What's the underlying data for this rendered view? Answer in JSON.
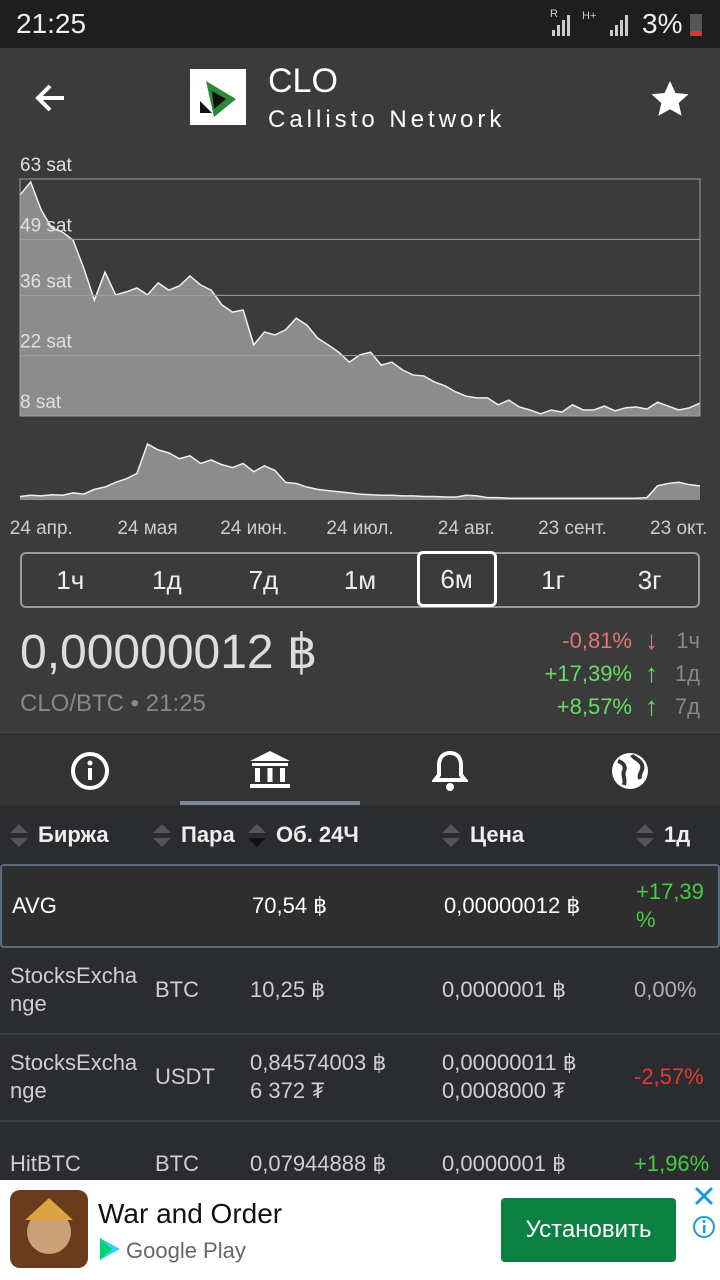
{
  "status_bar": {
    "time": "21:25",
    "network_1": "R",
    "network_2": "H+",
    "battery": "3%"
  },
  "header": {
    "symbol": "CLO",
    "name": "Callisto Network"
  },
  "chart_data": [
    {
      "type": "area",
      "color": "#8c8c8c",
      "line_color": "#f0f0f0",
      "grid": true,
      "ylim": [
        8,
        63
      ],
      "yticks": [
        {
          "value": 63,
          "label": "63 sat"
        },
        {
          "value": 49,
          "label": "49 sat"
        },
        {
          "value": 36,
          "label": "36 sat"
        },
        {
          "value": 22,
          "label": "22 sat"
        },
        {
          "value": 8,
          "label": "8 sat"
        }
      ],
      "categories": [
        null,
        null,
        "24 апр.",
        null,
        null,
        null,
        null,
        null,
        null,
        null,
        null,
        null,
        "24 мая",
        null,
        null,
        null,
        null,
        null,
        null,
        null,
        null,
        null,
        "24 июн.",
        null,
        null,
        null,
        null,
        null,
        null,
        null,
        null,
        null,
        "24 июл.",
        null,
        null,
        null,
        null,
        null,
        null,
        null,
        null,
        null,
        "24 авг.",
        null,
        null,
        null,
        null,
        null,
        null,
        null,
        null,
        null,
        "23 сент.",
        null,
        null,
        null,
        null,
        null,
        null,
        null,
        null,
        null,
        "23 окт.",
        null,
        null
      ],
      "values": [
        59.3,
        62.3,
        55.8,
        51.6,
        50.7,
        48.8,
        42.3,
        34.9,
        41.4,
        36.1,
        36.8,
        37.7,
        36.1,
        38.9,
        37.2,
        38.2,
        40.5,
        38.4,
        37.2,
        33.8,
        32.1,
        32.6,
        24.5,
        27.5,
        26.8,
        28.0,
        30.7,
        29.1,
        26.1,
        24.5,
        22.8,
        20.5,
        22.2,
        22.8,
        19.8,
        20.5,
        18.7,
        17.5,
        17.3,
        15.9,
        15.0,
        13.6,
        12.6,
        12.2,
        12.2,
        10.6,
        11.7,
        10.1,
        9.4,
        8.5,
        9.4,
        8.9,
        10.6,
        9.4,
        9.4,
        10.3,
        9.2,
        9.9,
        10.1,
        9.6,
        11.2,
        10.3,
        9.4,
        9.9,
        11.0
      ]
    },
    {
      "type": "area",
      "color": "#8c8c8c",
      "line_color": "#f0f0f0",
      "values": [
        6,
        8,
        7,
        9,
        8,
        12,
        10,
        18,
        22,
        30,
        36,
        45,
        95,
        85,
        80,
        70,
        75,
        62,
        68,
        60,
        55,
        62,
        48,
        58,
        50,
        30,
        28,
        22,
        18,
        16,
        14,
        12,
        10,
        9,
        8,
        8,
        7,
        7,
        6,
        6,
        5,
        5,
        8,
        7,
        4,
        4,
        3,
        3,
        3,
        3,
        3,
        3,
        3,
        3,
        3,
        3,
        3,
        3,
        3,
        4,
        24,
        28,
        30,
        26,
        24
      ]
    }
  ],
  "periods": {
    "items": [
      "1ч",
      "1д",
      "7д",
      "1м",
      "6м",
      "1г",
      "3г"
    ],
    "selected": 4
  },
  "price": {
    "value": "0,00000012 ฿",
    "pair": "CLO/BTC • 21:25",
    "changes": [
      {
        "value": "-0,81%",
        "arrow": "↓",
        "period": "1ч",
        "color": "#e57373"
      },
      {
        "value": "+17,39%",
        "arrow": "↑",
        "period": "1д",
        "color": "#66dd66"
      },
      {
        "value": "+8,57%",
        "arrow": "↑",
        "period": "7д",
        "color": "#66dd66"
      }
    ]
  },
  "table": {
    "headers": [
      "Биржа",
      "Пара",
      "Об. 24Ч",
      "Цена",
      "1д"
    ],
    "rows": [
      {
        "exchange": "AVG",
        "volume": [
          "70,54 ฿"
        ],
        "price": [
          "0,00000012 ฿"
        ],
        "change": "+17,39 %",
        "color": "#44cc44"
      },
      {
        "exchange": "StocksExchange",
        "pair": "BTC",
        "volume": [
          "10,25 ฿"
        ],
        "price": [
          "0,0000001 ฿"
        ],
        "change": "0,00%",
        "color": "#b0b0b0"
      },
      {
        "exchange": "StocksExchange",
        "pair": "USDT",
        "volume": [
          "0,84574003 ฿",
          "6 372 ₮"
        ],
        "price": [
          "0,00000011 ฿",
          "0,0008000 ₮"
        ],
        "change": "-2,57%",
        "color": "#e53935"
      },
      {
        "exchange": "HitBTC",
        "pair": "BTC",
        "volume": [
          "0,07944888 ฿"
        ],
        "price": [
          "0,0000001 ฿"
        ],
        "change": "+1,96%",
        "color": "#44cc44"
      }
    ]
  },
  "ad": {
    "title": "War and Order",
    "store": "Google Play",
    "button": "Установить"
  }
}
